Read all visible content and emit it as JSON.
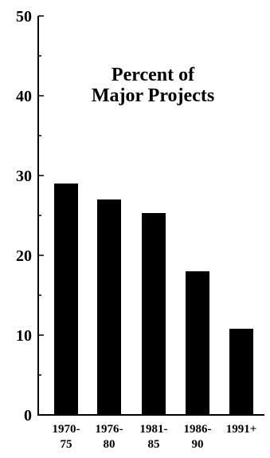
{
  "chart_data": {
    "type": "bar",
    "title_lines": [
      "Percent of",
      "Major Projects"
    ],
    "categories": [
      [
        "1970-",
        "75"
      ],
      [
        "1976-",
        "80"
      ],
      [
        "1981-",
        "85"
      ],
      [
        "1986-",
        "90"
      ],
      [
        "1991+",
        ""
      ]
    ],
    "values": [
      29,
      27,
      25.3,
      18,
      10.8
    ],
    "ylim": [
      0,
      50
    ],
    "yticks_labeled": [
      0,
      10,
      20,
      30,
      40,
      50
    ],
    "yticks_minor_step": 5,
    "xlabel": "",
    "ylabel": "",
    "grid": false,
    "bar_color": "#000000",
    "axis_color": "#000000"
  }
}
